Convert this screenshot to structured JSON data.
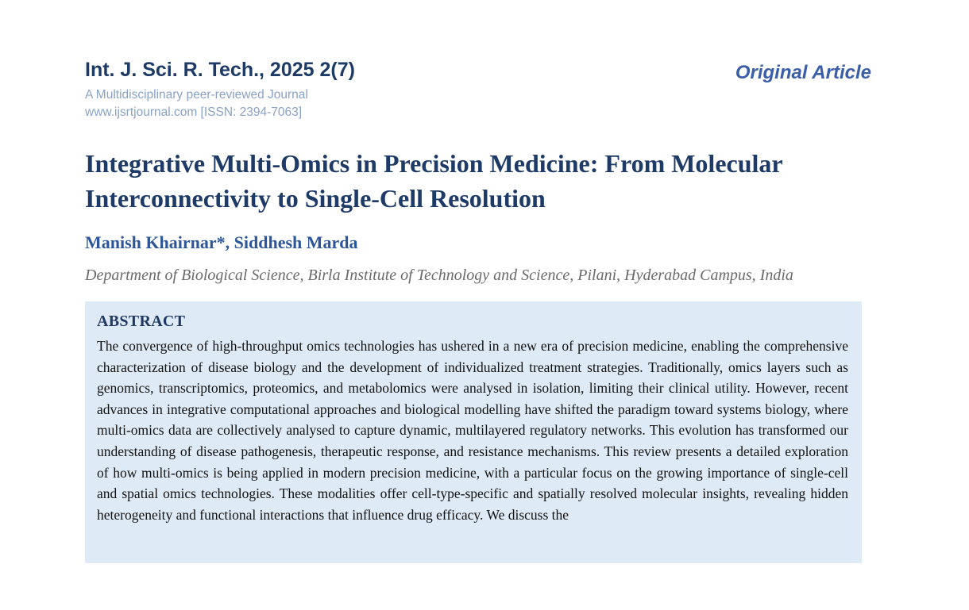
{
  "header": {
    "journal_title": "Int. J. Sci. R. Tech., 2025 2(7)",
    "journal_subtitle": "A Multidisciplinary peer-reviewed Journal",
    "journal_url_issn": "www.ijsrtjournal.com [ISSN: 2394-7063]",
    "article_type": "Original Article"
  },
  "article": {
    "title": "Integrative Multi-Omics in Precision Medicine: From Molecular Interconnectivity to Single-Cell Resolution",
    "authors": "Manish Khairnar*, Siddhesh Marda",
    "affiliation": "Department of Biological Science, Birla Institute of Technology and Science, Pilani, Hyderabad Campus, India"
  },
  "abstract": {
    "heading": "ABSTRACT",
    "body": "The convergence of high-throughput omics technologies has ushered in a new era of precision medicine, enabling the comprehensive characterization of disease biology and the development of individualized treatment strategies. Traditionally, omics layers such as genomics, transcriptomics, proteomics, and metabolomics were analysed in isolation, limiting their clinical utility. However, recent advances in integrative computational approaches and biological modelling have shifted the paradigm toward systems biology, where multi-omics data are collectively analysed to capture dynamic, multilayered regulatory networks. This evolution has transformed our understanding of disease pathogenesis, therapeutic response, and resistance mechanisms. This review presents a detailed exploration of how multi-omics is being applied in modern precision medicine, with a particular focus on the growing importance of single-cell and spatial omics technologies. These modalities offer cell-type-specific and spatially resolved molecular insights, revealing hidden heterogeneity and functional interactions that influence drug efficacy. We discuss the"
  },
  "colors": {
    "navy": "#1E3A66",
    "article_type_blue": "#3A5EA8",
    "author_blue": "#2D5699",
    "subtitle_blue": "#8AA2C8",
    "abstract_bg": "#DEEAF6",
    "affiliation_gray": "#6A6A6A",
    "body_text": "#111111"
  }
}
